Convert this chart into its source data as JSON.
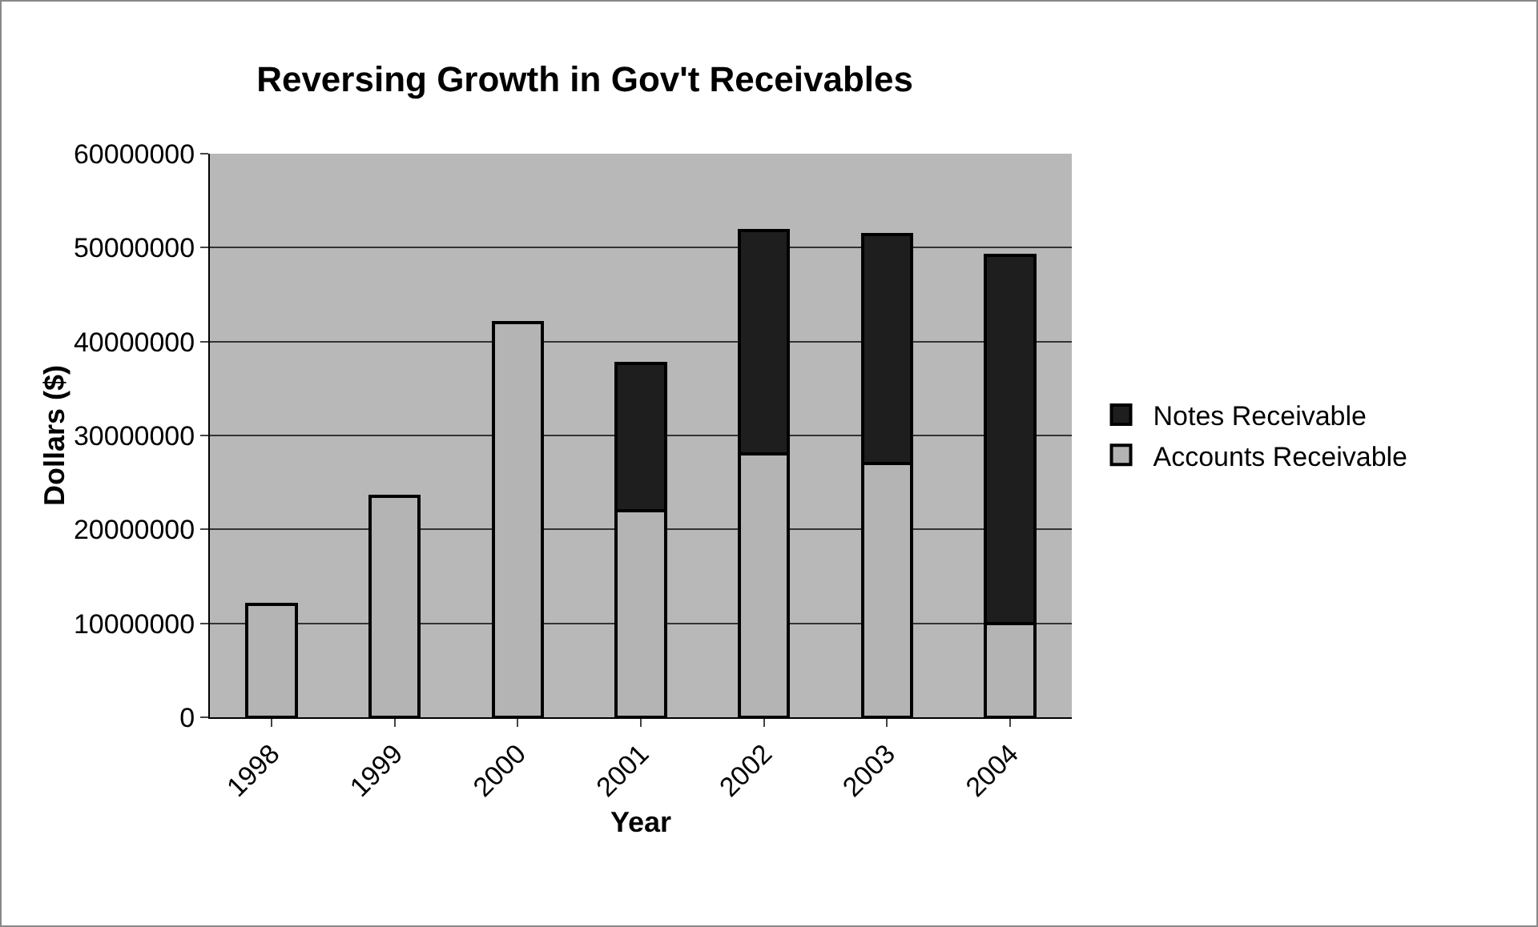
{
  "chart_data": {
    "type": "bar",
    "title": "Reversing Growth in Gov't Receivables",
    "xlabel": "Year",
    "ylabel": "Dollars ($)",
    "categories": [
      "1998",
      "1999",
      "2000",
      "2001",
      "2002",
      "2003",
      "2004"
    ],
    "stacked": true,
    "series": [
      {
        "name": "Accounts Receivable",
        "color": "#b4b4b4",
        "values": [
          12000000,
          23500000,
          42000000,
          22000000,
          28000000,
          27000000,
          10000000
        ]
      },
      {
        "name": "Notes Receivable",
        "color": "#1e1e1e",
        "values": [
          null,
          null,
          null,
          15700000,
          23800000,
          24400000,
          39200000
        ]
      }
    ],
    "ylim": [
      0,
      60000000
    ],
    "yticks": [
      0,
      10000000,
      20000000,
      30000000,
      40000000,
      50000000,
      60000000
    ],
    "grid": "y",
    "legend": "right"
  }
}
